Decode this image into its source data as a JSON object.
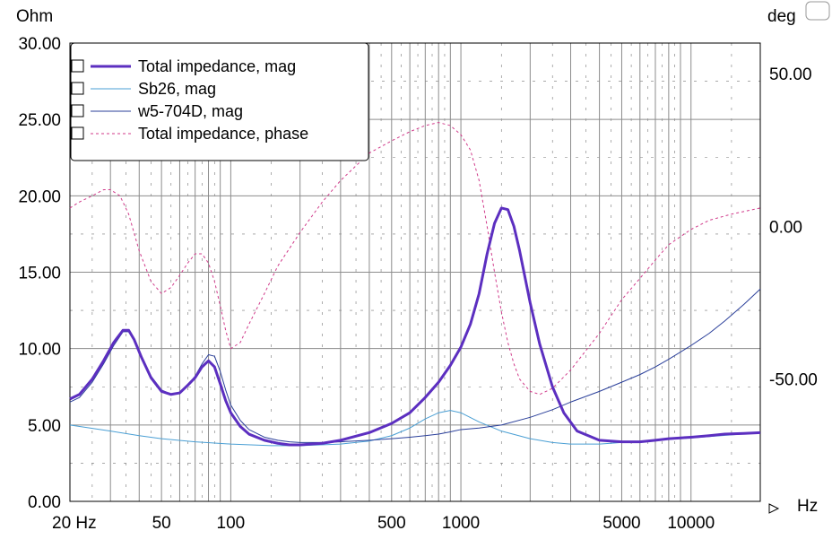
{
  "chart_data": {
    "type": "line",
    "xlabel": "Hz",
    "ylabel_left": "Ohm",
    "ylabel_right": "deg",
    "x_scale": "log",
    "xlim": [
      20,
      20000
    ],
    "ylim_left": [
      0,
      30
    ],
    "ylim_right": [
      -90,
      60
    ],
    "x_ticks": [
      {
        "value": 20,
        "label": "20 Hz"
      },
      {
        "value": 50,
        "label": "50"
      },
      {
        "value": 100,
        "label": "100"
      },
      {
        "value": 500,
        "label": "500"
      },
      {
        "value": 1000,
        "label": "1000"
      },
      {
        "value": 5000,
        "label": "5000"
      },
      {
        "value": 10000,
        "label": "10000"
      }
    ],
    "y_ticks_left": [
      {
        "value": 0,
        "label": "0.00"
      },
      {
        "value": 5,
        "label": "5.00"
      },
      {
        "value": 10,
        "label": "10.00"
      },
      {
        "value": 15,
        "label": "15.00"
      },
      {
        "value": 20,
        "label": "20.00"
      },
      {
        "value": 25,
        "label": "25.00"
      },
      {
        "value": 30,
        "label": "30.00"
      }
    ],
    "y_ticks_right": [
      {
        "value": 50,
        "label": "50.00"
      },
      {
        "value": 0,
        "label": "0.00"
      },
      {
        "value": -50,
        "label": "-50.00"
      }
    ],
    "grid": true,
    "legend_position": "top-left",
    "series": [
      {
        "name": "Total impedance, mag",
        "axis": "left",
        "color": "#5c2fc0",
        "style": "thick",
        "x": [
          20,
          22,
          25,
          28,
          31,
          34,
          36,
          38,
          41,
          45,
          50,
          55,
          60,
          65,
          70,
          75,
          80,
          85,
          90,
          95,
          100,
          110,
          120,
          140,
          160,
          180,
          200,
          250,
          300,
          400,
          500,
          600,
          700,
          800,
          900,
          1000,
          1100,
          1200,
          1300,
          1400,
          1500,
          1600,
          1700,
          1800,
          2000,
          2200,
          2500,
          2800,
          3200,
          4000,
          5000,
          6000,
          7000,
          8000,
          10000,
          12000,
          14000,
          17000,
          20000
        ],
        "y": [
          6.7,
          7.0,
          8.0,
          9.2,
          10.4,
          11.2,
          11.2,
          10.6,
          9.4,
          8.1,
          7.2,
          7.0,
          7.1,
          7.6,
          8.1,
          8.8,
          9.2,
          8.8,
          7.7,
          6.6,
          5.8,
          4.9,
          4.4,
          4.0,
          3.8,
          3.7,
          3.7,
          3.8,
          4.0,
          4.5,
          5.1,
          5.8,
          6.8,
          7.8,
          8.9,
          10.1,
          11.6,
          13.6,
          16.2,
          18.2,
          19.2,
          19.1,
          18.0,
          16.4,
          13.0,
          10.3,
          7.5,
          5.8,
          4.6,
          4.0,
          3.9,
          3.9,
          4.0,
          4.1,
          4.2,
          4.3,
          4.4,
          4.45,
          4.5
        ]
      },
      {
        "name": "Sb26, mag",
        "axis": "left",
        "color": "#4a9fd4",
        "style": "thin",
        "x": [
          20,
          30,
          40,
          50,
          70,
          100,
          150,
          200,
          300,
          400,
          500,
          600,
          700,
          800,
          900,
          1000,
          1200,
          1500,
          2000,
          2500,
          3000,
          4000,
          5000,
          7000,
          10000,
          15000,
          20000
        ],
        "y": [
          5.0,
          4.6,
          4.3,
          4.1,
          3.9,
          3.75,
          3.65,
          3.65,
          3.75,
          3.95,
          4.3,
          4.8,
          5.4,
          5.8,
          5.95,
          5.8,
          5.2,
          4.6,
          4.1,
          3.85,
          3.75,
          3.75,
          3.85,
          4.0,
          4.15,
          4.35,
          4.5
        ]
      },
      {
        "name": "w5-704D, mag",
        "axis": "left",
        "color": "#2a3f9a",
        "style": "thin",
        "x": [
          20,
          22,
          25,
          28,
          31,
          34,
          36,
          38,
          41,
          45,
          50,
          55,
          60,
          65,
          70,
          75,
          80,
          85,
          90,
          95,
          100,
          110,
          120,
          140,
          160,
          180,
          200,
          250,
          300,
          400,
          500,
          600,
          700,
          800,
          900,
          1000,
          1200,
          1500,
          2000,
          2500,
          3000,
          4000,
          5000,
          6000,
          7000,
          8000,
          10000,
          12000,
          14000,
          17000,
          20000
        ],
        "y": [
          6.5,
          6.8,
          7.8,
          9.0,
          10.2,
          11.1,
          11.1,
          10.6,
          9.5,
          8.2,
          7.3,
          7.0,
          7.1,
          7.6,
          8.2,
          9.0,
          9.6,
          9.5,
          8.5,
          7.3,
          6.3,
          5.3,
          4.7,
          4.2,
          4.0,
          3.9,
          3.85,
          3.85,
          3.9,
          4.0,
          4.1,
          4.2,
          4.3,
          4.4,
          4.55,
          4.7,
          4.8,
          5.0,
          5.5,
          6.0,
          6.5,
          7.2,
          7.8,
          8.3,
          8.8,
          9.3,
          10.2,
          11.0,
          11.8,
          12.9,
          13.9
        ]
      },
      {
        "name": "Total impedance, phase",
        "axis": "right",
        "color": "#d03a8a",
        "style": "dashed",
        "x": [
          20,
          22,
          25,
          28,
          30,
          33,
          36,
          40,
          45,
          50,
          55,
          60,
          65,
          70,
          75,
          80,
          85,
          90,
          95,
          100,
          110,
          120,
          140,
          160,
          200,
          250,
          300,
          400,
          500,
          600,
          700,
          800,
          900,
          1000,
          1100,
          1200,
          1300,
          1400,
          1500,
          1600,
          1700,
          1800,
          2000,
          2200,
          2500,
          3000,
          4000,
          5000,
          6000,
          7000,
          8000,
          10000,
          12000,
          15000,
          20000
        ],
        "y": [
          6,
          8,
          10,
          12,
          12,
          10,
          4,
          -8,
          -18,
          -22,
          -20,
          -16,
          -12,
          -9,
          -9,
          -12,
          -18,
          -26,
          -34,
          -40,
          -38,
          -32,
          -22,
          -13,
          -2,
          8,
          15,
          24,
          28,
          31,
          33,
          34,
          33,
          30,
          25,
          15,
          0,
          -15,
          -28,
          -38,
          -45,
          -50,
          -54,
          -55,
          -53,
          -47,
          -35,
          -24,
          -17,
          -11,
          -6,
          -1,
          2,
          4,
          6
        ]
      }
    ]
  }
}
